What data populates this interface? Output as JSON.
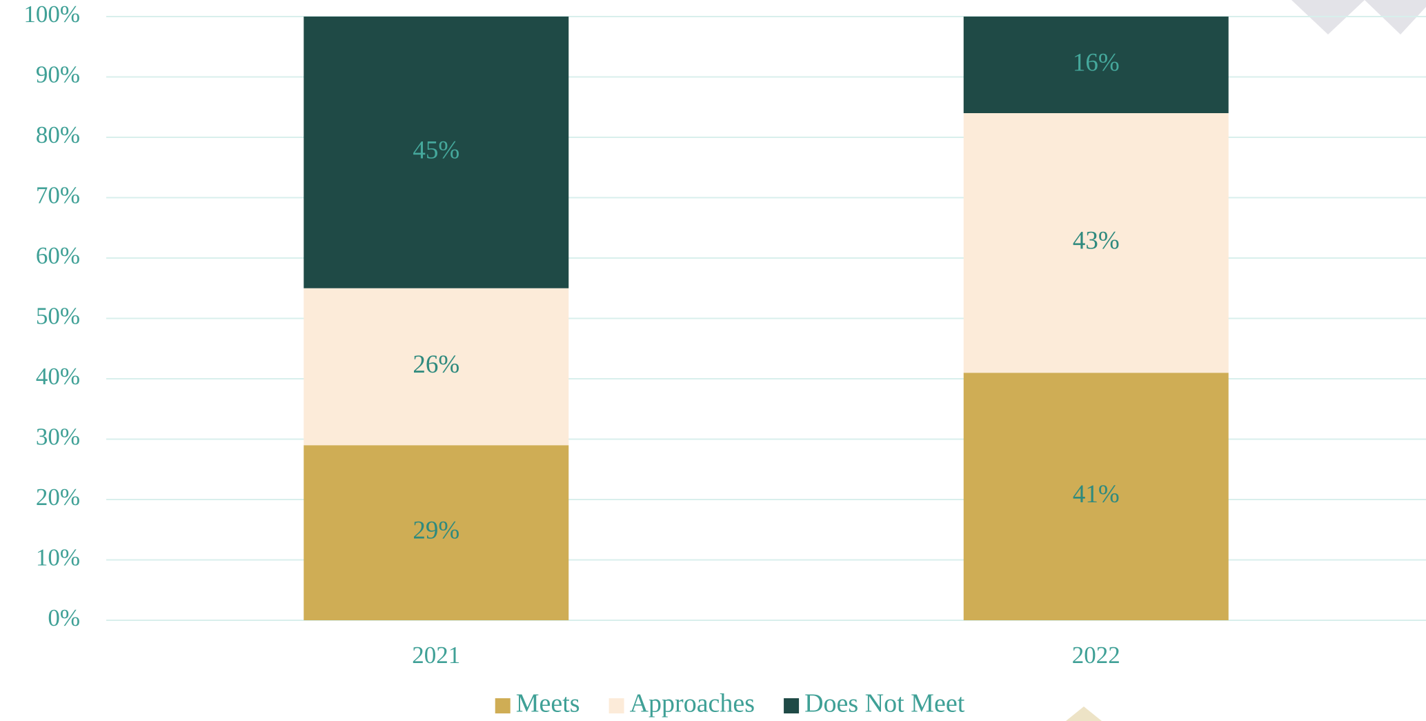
{
  "chart_data": {
    "type": "stacked_bar",
    "categories": [
      "2021",
      "2022"
    ],
    "series": [
      {
        "name": "Meets",
        "color": "#cfad55",
        "values": [
          29,
          41
        ],
        "value_labels": [
          "29%",
          "41%"
        ]
      },
      {
        "name": "Approaches",
        "color": "#fcebd9",
        "values": [
          26,
          43
        ],
        "value_labels": [
          "26%",
          "43%"
        ]
      },
      {
        "name": "Does Not Meet",
        "color": "#1f4a46",
        "values": [
          45,
          16
        ],
        "value_labels": [
          "45%",
          "16%"
        ]
      }
    ],
    "ylim": [
      0,
      100
    ],
    "yticks": [
      {
        "value": 0,
        "label": "0%"
      },
      {
        "value": 10,
        "label": "10%"
      },
      {
        "value": 20,
        "label": "20%"
      },
      {
        "value": 30,
        "label": "30%"
      },
      {
        "value": 40,
        "label": "40%"
      },
      {
        "value": 50,
        "label": "50%"
      },
      {
        "value": 60,
        "label": "60%"
      },
      {
        "value": 70,
        "label": "70%"
      },
      {
        "value": 80,
        "label": "80%"
      },
      {
        "value": 90,
        "label": "90%"
      },
      {
        "value": 100,
        "label": "100%"
      }
    ],
    "grid": true,
    "legend": "bottom"
  }
}
